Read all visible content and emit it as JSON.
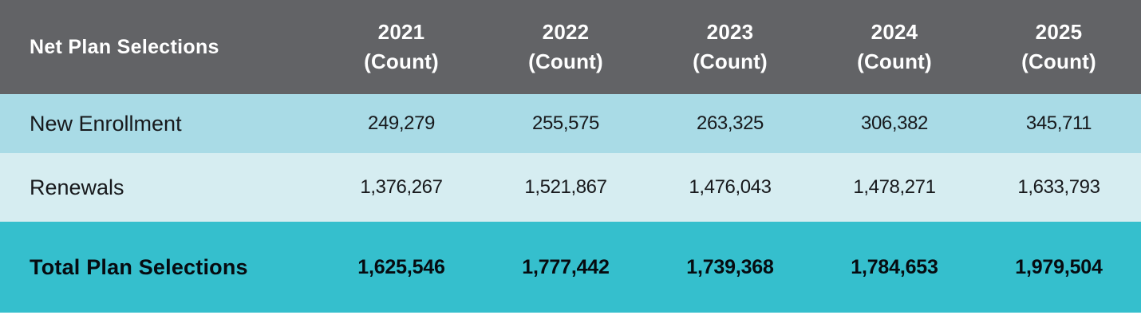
{
  "colors": {
    "header_bg": "#626366",
    "header_text": "#ffffff",
    "row_new_enrollment_bg": "#a9dbe6",
    "row_renewals_bg": "#d6edf1",
    "total_row_bg": "#35bfcd",
    "body_text": "#17191c",
    "page_bg": "#ffffff"
  },
  "table": {
    "title": "Net Plan Selections",
    "columns": [
      {
        "year": "2021",
        "unit": "(Count)"
      },
      {
        "year": "2022",
        "unit": "(Count)"
      },
      {
        "year": "2023",
        "unit": "(Count)"
      },
      {
        "year": "2024",
        "unit": "(Count)"
      },
      {
        "year": "2025",
        "unit": "(Count)"
      }
    ],
    "rows": [
      {
        "label": "New Enrollment",
        "values": [
          "249,279",
          "255,575",
          "263,325",
          "306,382",
          "345,711"
        ]
      },
      {
        "label": "Renewals",
        "values": [
          "1,376,267",
          "1,521,867",
          "1,476,043",
          "1,478,271",
          "1,633,793"
        ]
      }
    ],
    "total": {
      "label": "Total Plan Selections",
      "values": [
        "1,625,546",
        "1,777,442",
        "1,739,368",
        "1,784,653",
        "1,979,504"
      ]
    }
  },
  "chart_data": {
    "type": "table",
    "title": "Net Plan Selections",
    "columns": [
      "Net Plan Selections",
      "2021 (Count)",
      "2022 (Count)",
      "2023 (Count)",
      "2024 (Count)",
      "2025 (Count)"
    ],
    "rows": [
      [
        "New Enrollment",
        249279,
        255575,
        263325,
        306382,
        345711
      ],
      [
        "Renewals",
        1376267,
        1521867,
        1476043,
        1478271,
        1633793
      ],
      [
        "Total Plan Selections",
        1625546,
        1777442,
        1739368,
        1784653,
        1979504
      ]
    ]
  }
}
